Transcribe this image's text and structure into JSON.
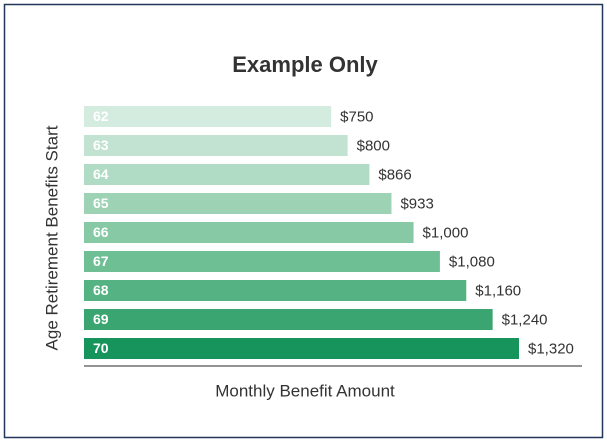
{
  "chart_data": {
    "type": "bar",
    "orientation": "horizontal",
    "title": "Example Only",
    "x_label": "Monthly Benefit Amount",
    "y_label": "Age Retirement Benefits Start",
    "categories": [
      "62",
      "63",
      "64",
      "65",
      "66",
      "67",
      "68",
      "69",
      "70"
    ],
    "values": [
      750,
      800,
      866,
      933,
      1000,
      1080,
      1160,
      1240,
      1320
    ],
    "value_labels": [
      "$750",
      "$800",
      "$866",
      "$933",
      "$1,000",
      "$1,080",
      "$1,160",
      "$1,240",
      "$1,320"
    ],
    "colors": [
      "#d4ebdf",
      "#c3e3d2",
      "#b0dbc4",
      "#9dd2b5",
      "#87c9a5",
      "#6fbf94",
      "#55b282",
      "#3aa570",
      "#17935c"
    ]
  }
}
